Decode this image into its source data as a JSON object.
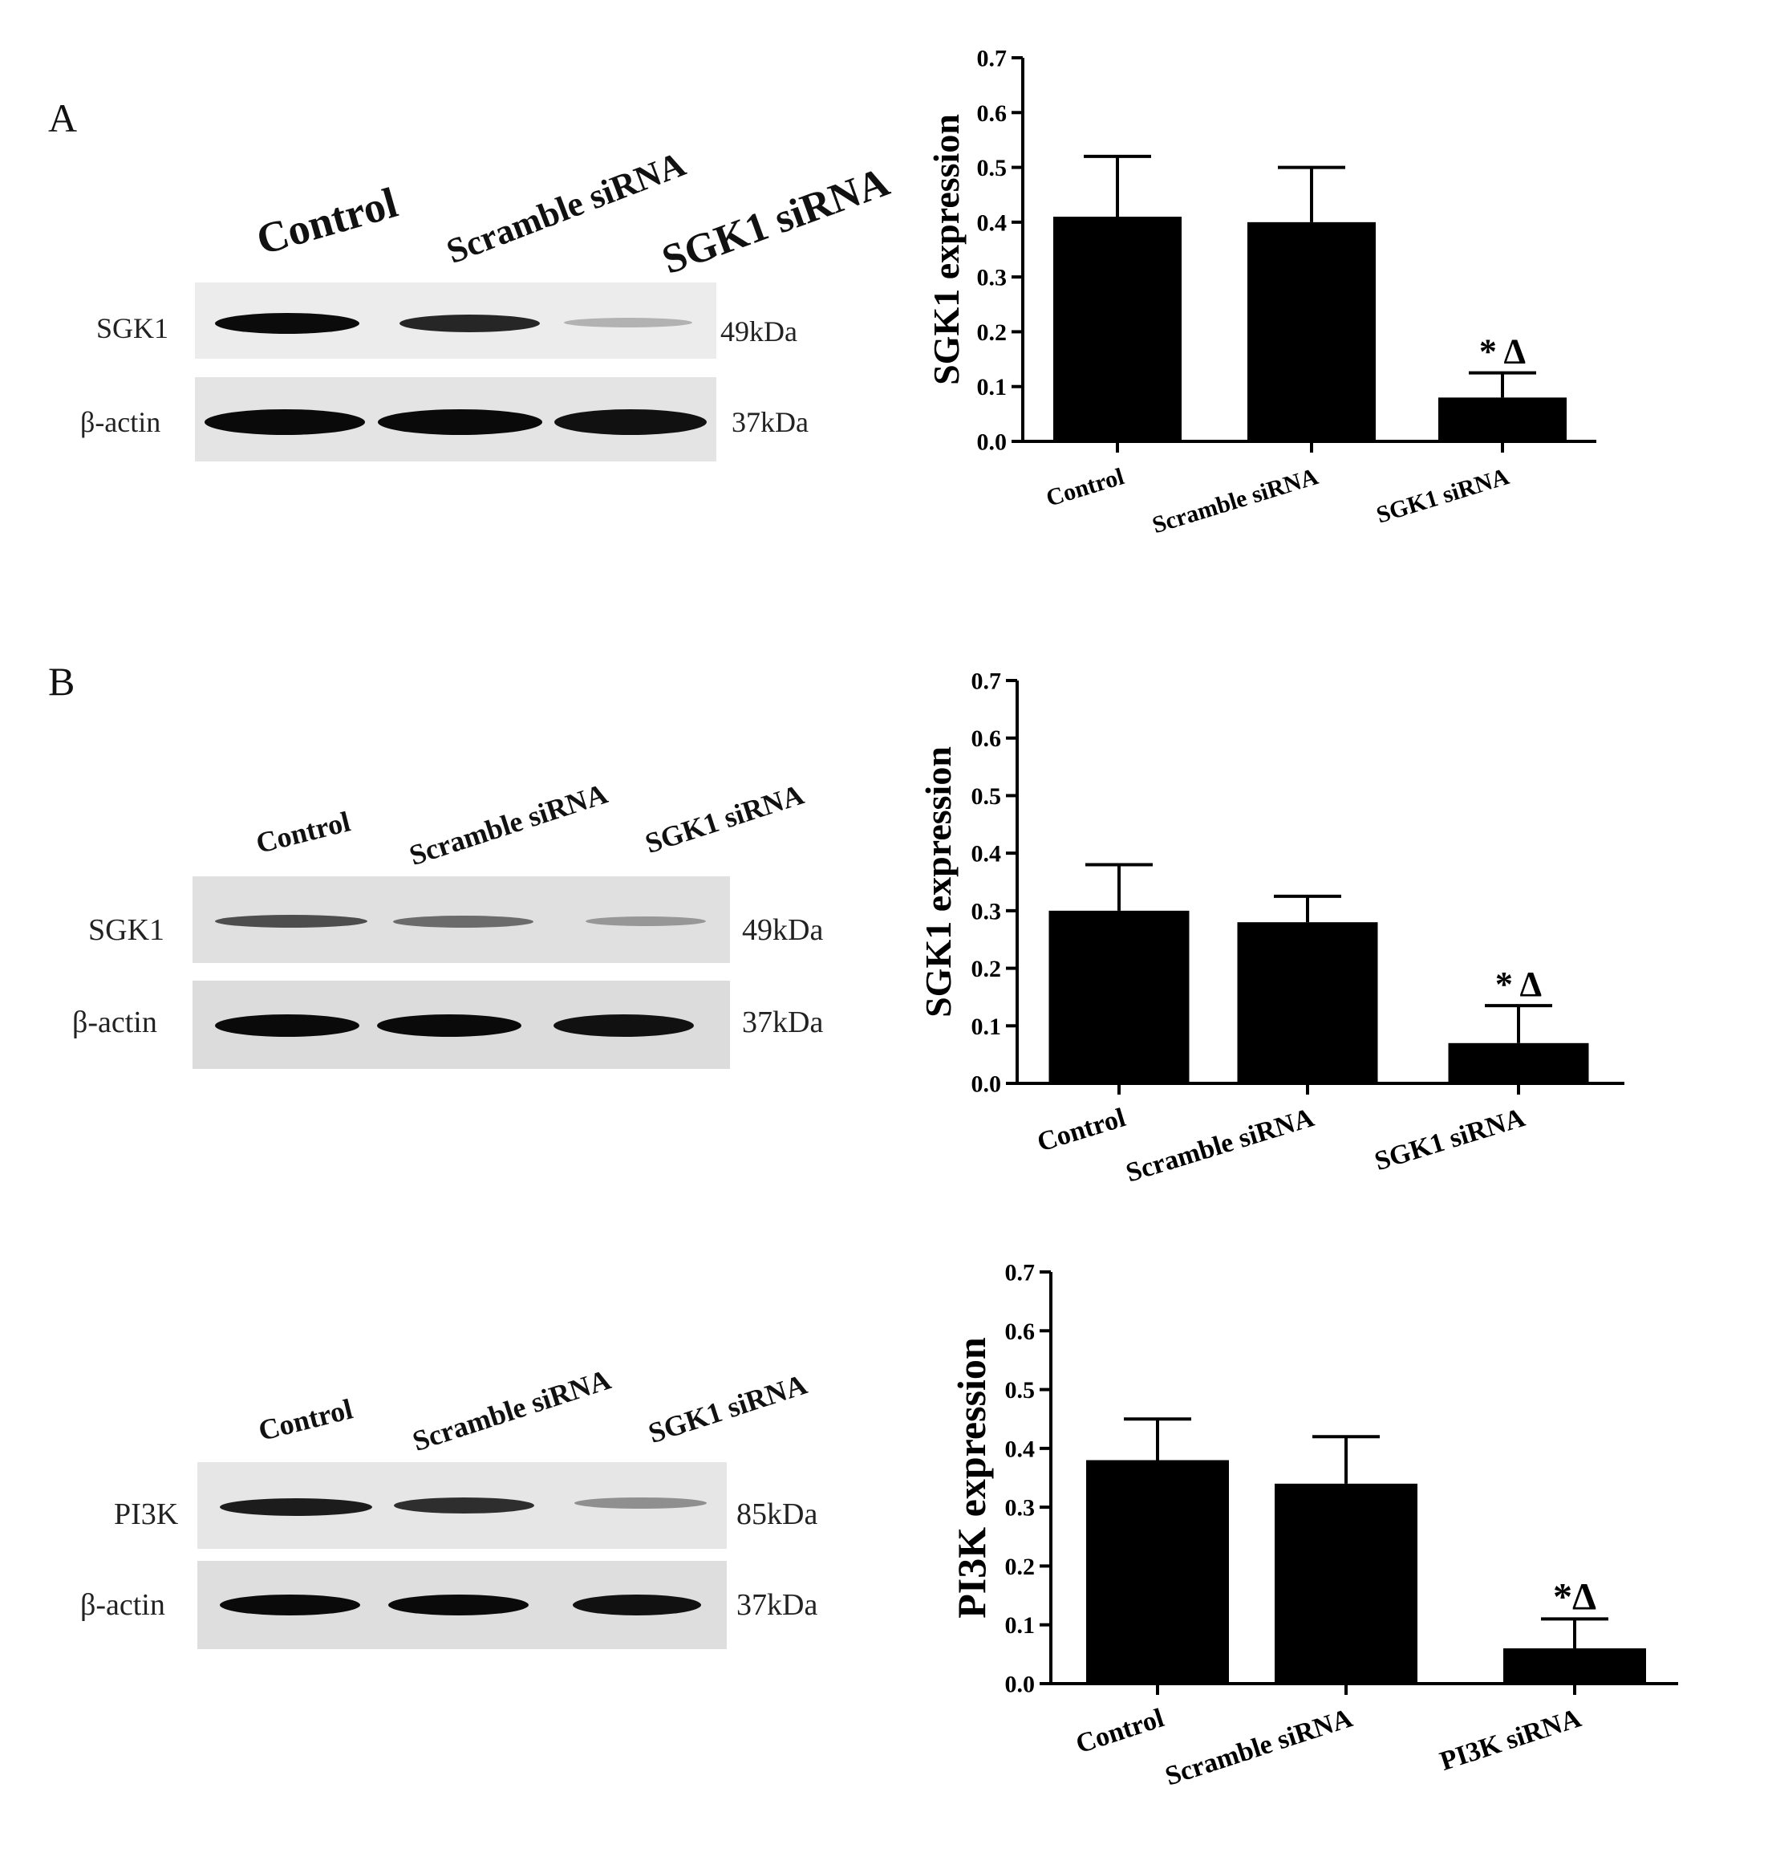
{
  "panels": [
    {
      "letter": "A",
      "blots": [
        {
          "lanes": [
            "Control",
            "Scramble siRNA",
            "SGK1 siRNA"
          ],
          "rows": [
            {
              "label": "SGK1",
              "kda": "49kDa",
              "intensity": [
                1.0,
                0.85,
                0.15
              ]
            },
            {
              "label": "β-actin",
              "kda": "37kDa",
              "intensity": [
                1.0,
                1.0,
                0.95
              ]
            }
          ]
        }
      ]
    },
    {
      "letter": "B",
      "blots": [
        {
          "lanes": [
            "Control",
            "Scramble siRNA",
            "SGK1 siRNA"
          ],
          "rows": [
            {
              "label": "SGK1",
              "kda": "49kDa",
              "intensity": [
                0.7,
                0.6,
                0.35
              ]
            },
            {
              "label": "β-actin",
              "kda": "37kDa",
              "intensity": [
                1.0,
                1.0,
                0.95
              ]
            }
          ]
        },
        {
          "lanes": [
            "Control",
            "Scramble siRNA",
            "SGK1 siRNA"
          ],
          "rows": [
            {
              "label": "PI3K",
              "kda": "85kDa",
              "intensity": [
                0.95,
                0.85,
                0.4
              ]
            },
            {
              "label": "β-actin",
              "kda": "37kDa",
              "intensity": [
                1.0,
                1.0,
                0.95
              ]
            }
          ]
        }
      ]
    }
  ],
  "chart_data": [
    {
      "type": "bar",
      "categories": [
        "Control",
        "Scramble siRNA",
        "SGK1 siRNA"
      ],
      "values": [
        0.41,
        0.4,
        0.08
      ],
      "errors": [
        0.11,
        0.1,
        0.045
      ],
      "annotation": {
        "category": "SGK1 siRNA",
        "text": "* Δ"
      },
      "xlabel": "",
      "ylabel": "SGK1 expression",
      "ylim": [
        0,
        0.7
      ],
      "yticks": [
        "0.0",
        "0.1",
        "0.2",
        "0.3",
        "0.4",
        "0.5",
        "0.6",
        "0.7"
      ],
      "grid": false
    },
    {
      "type": "bar",
      "categories": [
        "Control",
        "Scramble siRNA",
        "SGK1 siRNA"
      ],
      "values": [
        0.3,
        0.28,
        0.07
      ],
      "errors": [
        0.08,
        0.045,
        0.065
      ],
      "annotation": {
        "category": "SGK1 siRNA",
        "text": "* Δ"
      },
      "xlabel": "",
      "ylabel": "SGK1 expression",
      "ylim": [
        0,
        0.7
      ],
      "yticks": [
        "0.0",
        "0.1",
        "0.2",
        "0.3",
        "0.4",
        "0.5",
        "0.6",
        "0.7"
      ],
      "grid": false
    },
    {
      "type": "bar",
      "categories": [
        "Control",
        "Scramble siRNA",
        "PI3K siRNA"
      ],
      "values": [
        0.38,
        0.34,
        0.06
      ],
      "errors": [
        0.07,
        0.08,
        0.05
      ],
      "annotation": {
        "category": "PI3K siRNA",
        "text": "*Δ"
      },
      "xlabel": "",
      "ylabel": "PI3K expression",
      "ylim": [
        0,
        0.7
      ],
      "yticks": [
        "0.0",
        "0.1",
        "0.2",
        "0.3",
        "0.4",
        "0.5",
        "0.6",
        "0.7"
      ],
      "grid": false
    }
  ]
}
